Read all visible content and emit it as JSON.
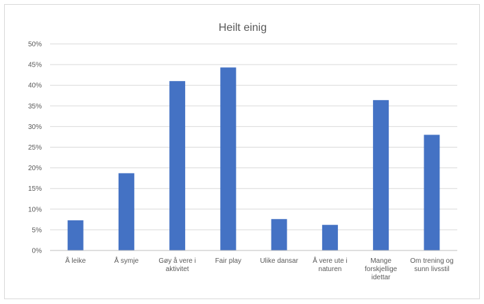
{
  "chart_data": {
    "type": "bar",
    "title": "Heilt einig",
    "categories": [
      [
        "Å leike"
      ],
      [
        "Å symje"
      ],
      [
        "Gøy å vere i",
        "aktivitet"
      ],
      [
        "Fair play"
      ],
      [
        "Ulike dansar"
      ],
      [
        "Å vere ute i",
        "naturen"
      ],
      [
        "Mange",
        "forskjellige",
        "idettar"
      ],
      [
        "Om trening og",
        "sunn livsstil"
      ]
    ],
    "values": [
      7.3,
      18.7,
      41.0,
      44.3,
      7.6,
      6.2,
      36.4,
      28.0
    ],
    "ylim": [
      0,
      50
    ],
    "yticks": [
      "0%",
      "5%",
      "10%",
      "15%",
      "20%",
      "25%",
      "30%",
      "35%",
      "40%",
      "45%",
      "50%"
    ],
    "xlabel": "",
    "ylabel": "",
    "grid": true,
    "bar_color": "#4472c4"
  }
}
